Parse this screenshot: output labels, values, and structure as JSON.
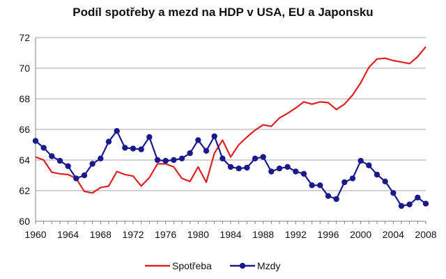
{
  "chart_data": {
    "type": "line",
    "title": "Podíl spotřeby a mezd na HDP v USA, EU a Japonsku",
    "xlabel": "",
    "ylabel": "",
    "xlim": [
      1960,
      2008
    ],
    "ylim": [
      60,
      72
    ],
    "x_ticks": [
      1960,
      1964,
      1968,
      1972,
      1976,
      1980,
      1984,
      1988,
      1992,
      1996,
      2000,
      2004,
      2008
    ],
    "y_ticks": [
      60,
      62,
      64,
      66,
      68,
      70,
      72
    ],
    "grid": "horizontal",
    "legend_position": "bottom",
    "x": [
      1960,
      1961,
      1962,
      1963,
      1964,
      1965,
      1966,
      1967,
      1968,
      1969,
      1970,
      1971,
      1972,
      1973,
      1974,
      1975,
      1976,
      1977,
      1978,
      1979,
      1980,
      1981,
      1982,
      1983,
      1984,
      1985,
      1986,
      1987,
      1988,
      1989,
      1990,
      1991,
      1992,
      1993,
      1994,
      1995,
      1996,
      1997,
      1998,
      1999,
      2000,
      2001,
      2002,
      2003,
      2004,
      2005,
      2006,
      2007,
      2008
    ],
    "series": [
      {
        "name": "Spotřeba",
        "color": "#e02020",
        "marker": "none",
        "values": [
          64.2,
          64.0,
          63.2,
          63.1,
          63.05,
          62.8,
          61.95,
          61.85,
          62.2,
          62.3,
          63.25,
          63.05,
          62.95,
          62.3,
          62.85,
          63.75,
          63.75,
          63.55,
          62.8,
          62.6,
          63.55,
          62.55,
          64.45,
          65.3,
          64.2,
          65.0,
          65.5,
          65.95,
          66.3,
          66.2,
          66.75,
          67.05,
          67.4,
          67.8,
          67.65,
          67.8,
          67.75,
          67.3,
          67.65,
          68.25,
          69.05,
          70.05,
          70.6,
          70.65,
          70.5,
          70.4,
          70.3,
          70.75,
          71.4
        ]
      },
      {
        "name": "Mzdy",
        "color": "#1a1a8c",
        "marker": "circle",
        "values": [
          65.25,
          64.8,
          64.25,
          63.95,
          63.6,
          62.8,
          63.0,
          63.75,
          64.1,
          65.2,
          65.9,
          64.8,
          64.75,
          64.7,
          65.5,
          64.0,
          63.95,
          64.0,
          64.1,
          64.45,
          65.3,
          64.6,
          65.55,
          64.1,
          63.55,
          63.45,
          63.5,
          64.1,
          64.2,
          63.25,
          63.45,
          63.55,
          63.25,
          63.1,
          62.35,
          62.35,
          61.65,
          61.45,
          62.55,
          62.8,
          63.95,
          63.65,
          63.05,
          62.6,
          61.85,
          61.0,
          61.1,
          61.55,
          61.15
        ]
      }
    ]
  }
}
